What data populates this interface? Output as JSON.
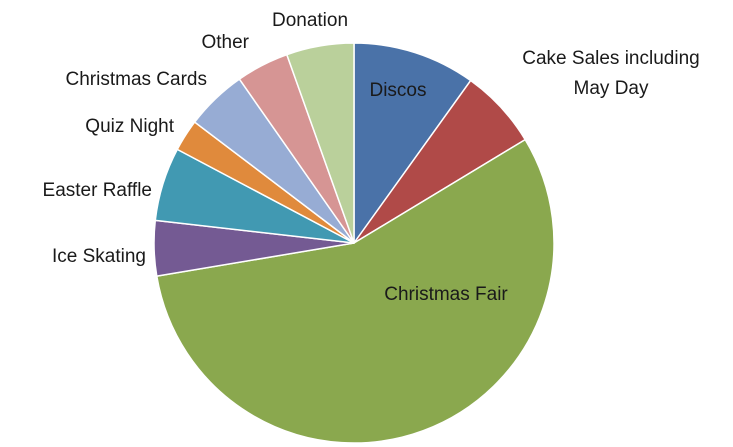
{
  "chart_data": {
    "type": "pie",
    "title": "",
    "start_angle_deg": 0,
    "direction": "clockwise",
    "legend": "none",
    "slices": [
      {
        "label": "Discos",
        "value": 10.0,
        "color": "#4a72a8"
      },
      {
        "label": "Cake Sales including May Day",
        "value": 6.5,
        "color": "#b04a48"
      },
      {
        "label": "Christmas Fair",
        "value": 56.5,
        "color": "#8aa84e"
      },
      {
        "label": "Ice Skating",
        "value": 4.5,
        "color": "#745a93"
      },
      {
        "label": "Easter Raffle",
        "value": 6.0,
        "color": "#4199b2"
      },
      {
        "label": "Quiz Night",
        "value": 2.6,
        "color": "#e08a3c"
      },
      {
        "label": "Christmas Cards",
        "value": 5.0,
        "color": "#97acd4"
      },
      {
        "label": "Other",
        "value": 4.3,
        "color": "#d69594"
      },
      {
        "label": "Donation",
        "value": 5.5,
        "color": "#bad09b"
      }
    ]
  }
}
